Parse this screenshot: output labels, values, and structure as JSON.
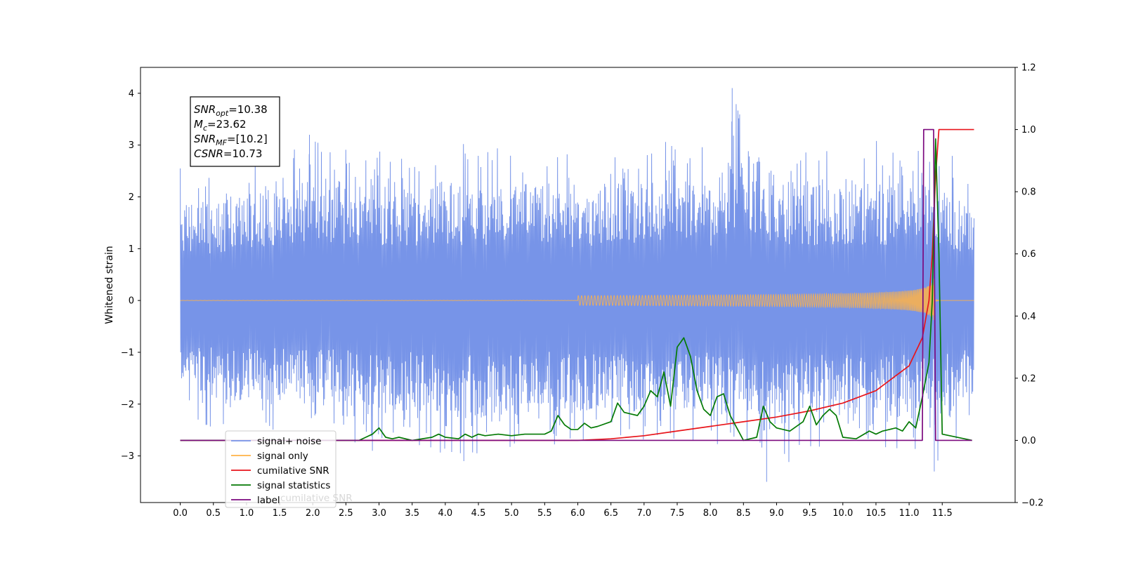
{
  "chart_data": {
    "type": "line",
    "ylabel_left": "Whitened strain",
    "x_ticks": [
      "0.0",
      "0.5",
      "1.0",
      "1.5",
      "2.0",
      "2.5",
      "3.0",
      "3.5",
      "4.0",
      "4.5",
      "5.0",
      "5.5",
      "6.0",
      "6.5",
      "7.0",
      "7.5",
      "8.0",
      "8.5",
      "9.0",
      "9.5",
      "10.0",
      "10.5",
      "11.0",
      "11.5"
    ],
    "x_tick_values": [
      0.0,
      0.5,
      1.0,
      1.5,
      2.0,
      2.5,
      3.0,
      3.5,
      4.0,
      4.5,
      5.0,
      5.5,
      6.0,
      6.5,
      7.0,
      7.5,
      8.0,
      8.5,
      9.0,
      9.5,
      10.0,
      10.5,
      11.0,
      11.5
    ],
    "xlim": [
      -0.6,
      12.6
    ],
    "y_left_ticks": [
      "−3",
      "−2",
      "−1",
      "0",
      "1",
      "2",
      "3",
      "4"
    ],
    "y_left_tick_values": [
      -3,
      -2,
      -1,
      0,
      1,
      2,
      3,
      4
    ],
    "ylim_left": [
      -3.9,
      4.5
    ],
    "y_right_ticks": [
      "−0.2",
      "0.0",
      "0.2",
      "0.4",
      "0.6",
      "0.8",
      "1.0",
      "1.2"
    ],
    "y_right_tick_values": [
      -0.2,
      0.0,
      0.2,
      0.4,
      0.6,
      0.8,
      1.0,
      1.2
    ],
    "ylim_right": [
      -0.2,
      1.2
    ],
    "grid": false,
    "legend_placement": "lower-left",
    "info_box": {
      "lines": [
        {
          "main": "SNR",
          "sub": "opt",
          "rest": "=10.38"
        },
        {
          "main": "M",
          "sub": "c",
          "rest": "=23.62"
        },
        {
          "main": "SNR",
          "sub": "MF",
          "rest": "=[10.2]"
        },
        {
          "main": "CSNR",
          "sub": "",
          "rest": "=10.73"
        }
      ]
    },
    "legend_ghost_label": "cumilative SNR",
    "series": [
      {
        "name": "signal+ noise",
        "axis": "left",
        "color": "#7794e8",
        "envelope": {
          "x": [
            0.0,
            0.5,
            1.0,
            1.5,
            2.0,
            2.5,
            3.0,
            3.5,
            4.0,
            4.5,
            5.0,
            5.5,
            6.0,
            6.5,
            7.0,
            7.5,
            8.0,
            8.5,
            9.0,
            9.5,
            10.0,
            10.5,
            11.0,
            11.2,
            11.3,
            11.4,
            11.5,
            11.6,
            11.98
          ],
          "upper": [
            2.6,
            2.5,
            2.9,
            2.9,
            3.2,
            3.1,
            3.0,
            2.9,
            3.1,
            3.0,
            3.1,
            3.0,
            2.8,
            3.1,
            3.0,
            3.1,
            3.0,
            4.1,
            3.1,
            3.0,
            3.0,
            3.1,
            3.0,
            3.0,
            2.9,
            3.0,
            3.0,
            2.9,
            2.2
          ],
          "lower": [
            -2.3,
            -2.5,
            -2.6,
            -2.6,
            -2.7,
            -2.7,
            -3.0,
            -2.8,
            -3.1,
            -3.0,
            -3.0,
            -2.8,
            -3.0,
            -2.8,
            -3.0,
            -2.8,
            -2.8,
            -3.0,
            -3.5,
            -2.9,
            -3.0,
            -3.0,
            -3.0,
            -2.9,
            -2.8,
            -3.3,
            -2.8,
            -2.9,
            -2.4
          ]
        },
        "spikes": [
          {
            "x": 8.33,
            "y": 4.1
          },
          {
            "x": 8.85,
            "y": -3.5
          },
          {
            "x": 1.95,
            "y": 3.2
          },
          {
            "x": 11.38,
            "y": -3.3
          },
          {
            "x": 4.28,
            "y": -3.1
          },
          {
            "x": 2.9,
            "y": -2.9
          }
        ]
      },
      {
        "name": "signal only",
        "axis": "left",
        "color": "#ffb347",
        "chirp": {
          "start": 0.0,
          "merger": 11.38,
          "end": 11.98,
          "peak_amplitude": 0.45
        }
      },
      {
        "name": "cumilative SNR",
        "axis": "right",
        "color": "#e8151b",
        "x": [
          0.0,
          6.0,
          6.5,
          7.0,
          7.5,
          8.0,
          8.5,
          9.0,
          9.5,
          10.0,
          10.5,
          11.0,
          11.2,
          11.3,
          11.35,
          11.4,
          11.45,
          11.98
        ],
        "values": [
          0.0,
          0.0,
          0.005,
          0.015,
          0.03,
          0.045,
          0.06,
          0.075,
          0.095,
          0.12,
          0.16,
          0.24,
          0.33,
          0.45,
          0.6,
          0.85,
          1.0,
          1.0
        ]
      },
      {
        "name": "signal statistics",
        "axis": "right",
        "color": "#047a04",
        "x": [
          0.0,
          2.7,
          2.8,
          2.9,
          3.0,
          3.1,
          3.2,
          3.3,
          3.5,
          3.8,
          3.9,
          4.0,
          4.2,
          4.3,
          4.4,
          4.5,
          4.6,
          4.8,
          5.0,
          5.2,
          5.5,
          5.6,
          5.7,
          5.8,
          5.9,
          6.0,
          6.1,
          6.2,
          6.3,
          6.5,
          6.6,
          6.7,
          6.8,
          6.9,
          7.0,
          7.1,
          7.2,
          7.3,
          7.4,
          7.5,
          7.6,
          7.7,
          7.8,
          7.9,
          8.0,
          8.1,
          8.2,
          8.3,
          8.5,
          8.7,
          8.8,
          8.9,
          9.0,
          9.2,
          9.4,
          9.5,
          9.6,
          9.7,
          9.8,
          9.9,
          10.0,
          10.2,
          10.4,
          10.5,
          10.6,
          10.8,
          10.9,
          11.0,
          11.1,
          11.2,
          11.3,
          11.35,
          11.4,
          11.45,
          11.5,
          11.95
        ],
        "values": [
          0.0,
          0.0,
          0.01,
          0.02,
          0.04,
          0.01,
          0.005,
          0.01,
          0.0,
          0.01,
          0.02,
          0.01,
          0.005,
          0.02,
          0.01,
          0.02,
          0.015,
          0.02,
          0.015,
          0.02,
          0.02,
          0.03,
          0.08,
          0.05,
          0.035,
          0.035,
          0.055,
          0.04,
          0.045,
          0.06,
          0.12,
          0.09,
          0.085,
          0.08,
          0.11,
          0.16,
          0.14,
          0.22,
          0.11,
          0.3,
          0.33,
          0.27,
          0.16,
          0.1,
          0.08,
          0.14,
          0.15,
          0.08,
          0.0,
          0.01,
          0.11,
          0.06,
          0.04,
          0.03,
          0.06,
          0.11,
          0.05,
          0.08,
          0.1,
          0.08,
          0.01,
          0.005,
          0.03,
          0.02,
          0.03,
          0.04,
          0.03,
          0.06,
          0.04,
          0.14,
          0.25,
          0.45,
          0.97,
          0.6,
          0.02,
          0.0
        ]
      },
      {
        "name": "label",
        "axis": "right",
        "color": "#7c0a7f",
        "x": [
          0.0,
          11.2,
          11.22,
          11.37,
          11.4,
          11.42,
          11.95
        ],
        "values": [
          0.0,
          0.0,
          1.0,
          1.0,
          0.0,
          0.0,
          0.0
        ]
      }
    ]
  }
}
